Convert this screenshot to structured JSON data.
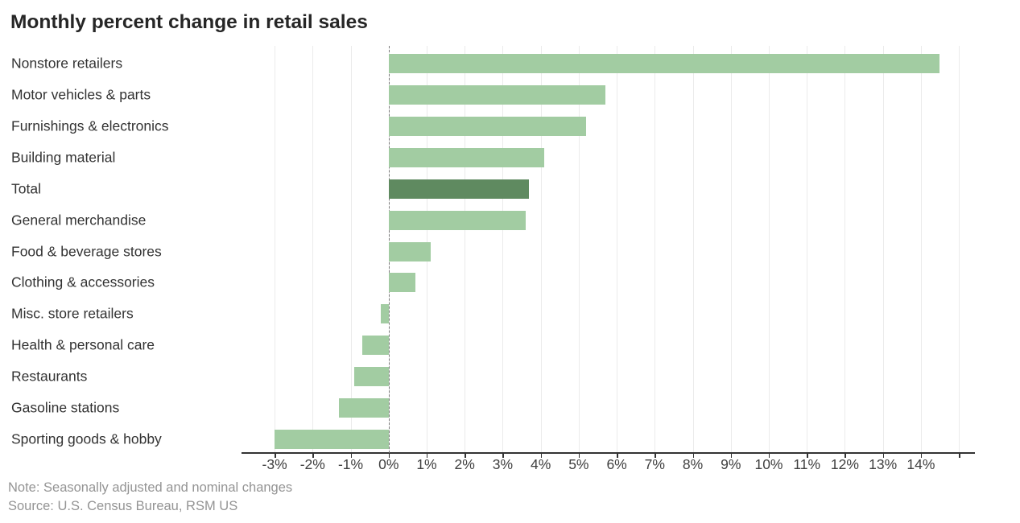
{
  "title": "Monthly percent change in retail sales",
  "note": "Note: Seasonally adjusted and nominal changes",
  "source": "Source: U.S. Census Bureau, RSM US",
  "colors": {
    "bar": "#a2cca2",
    "highlight": "#5f8a60",
    "grid": "#ebebeb",
    "axis": "#333333",
    "zero_line": "#7a7a7a",
    "title_text": "#262626",
    "label_text": "#333333",
    "tick_text": "#404040",
    "note_text": "#949494"
  },
  "chart_data": {
    "type": "bar",
    "orientation": "horizontal",
    "title": "Monthly percent change in retail sales",
    "unit": "%",
    "categories": [
      "Nonstore retailers",
      "Motor vehicles & parts",
      "Furnishings & electronics",
      "Building material",
      "Total",
      "General merchandise",
      "Food & beverage stores",
      "Clothing & accessories",
      "Misc. store retailers",
      "Health & personal care",
      "Restaurants",
      "Gasoline stations",
      "Sporting goods & hobby"
    ],
    "values": [
      14.5,
      5.7,
      5.2,
      4.1,
      3.7,
      3.6,
      1.1,
      0.7,
      -0.2,
      -0.7,
      -0.9,
      -1.3,
      -3.0
    ],
    "highlight_category": "Total",
    "xlim": [
      -3.87,
      15.4
    ],
    "x_ticks": [
      -3,
      -2,
      -1,
      0,
      1,
      2,
      3,
      4,
      5,
      6,
      7,
      8,
      9,
      10,
      11,
      12,
      13,
      14,
      15
    ],
    "x_tick_labels": [
      "-3%",
      "-2%",
      "-1%",
      "0%",
      "1%",
      "2%",
      "3%",
      "4%",
      "5%",
      "6%",
      "7%",
      "8%",
      "9%",
      "10%",
      "11%",
      "12%",
      "13%",
      "14%",
      ""
    ],
    "grid": true,
    "legend": false,
    "zero_line": "dashed"
  }
}
